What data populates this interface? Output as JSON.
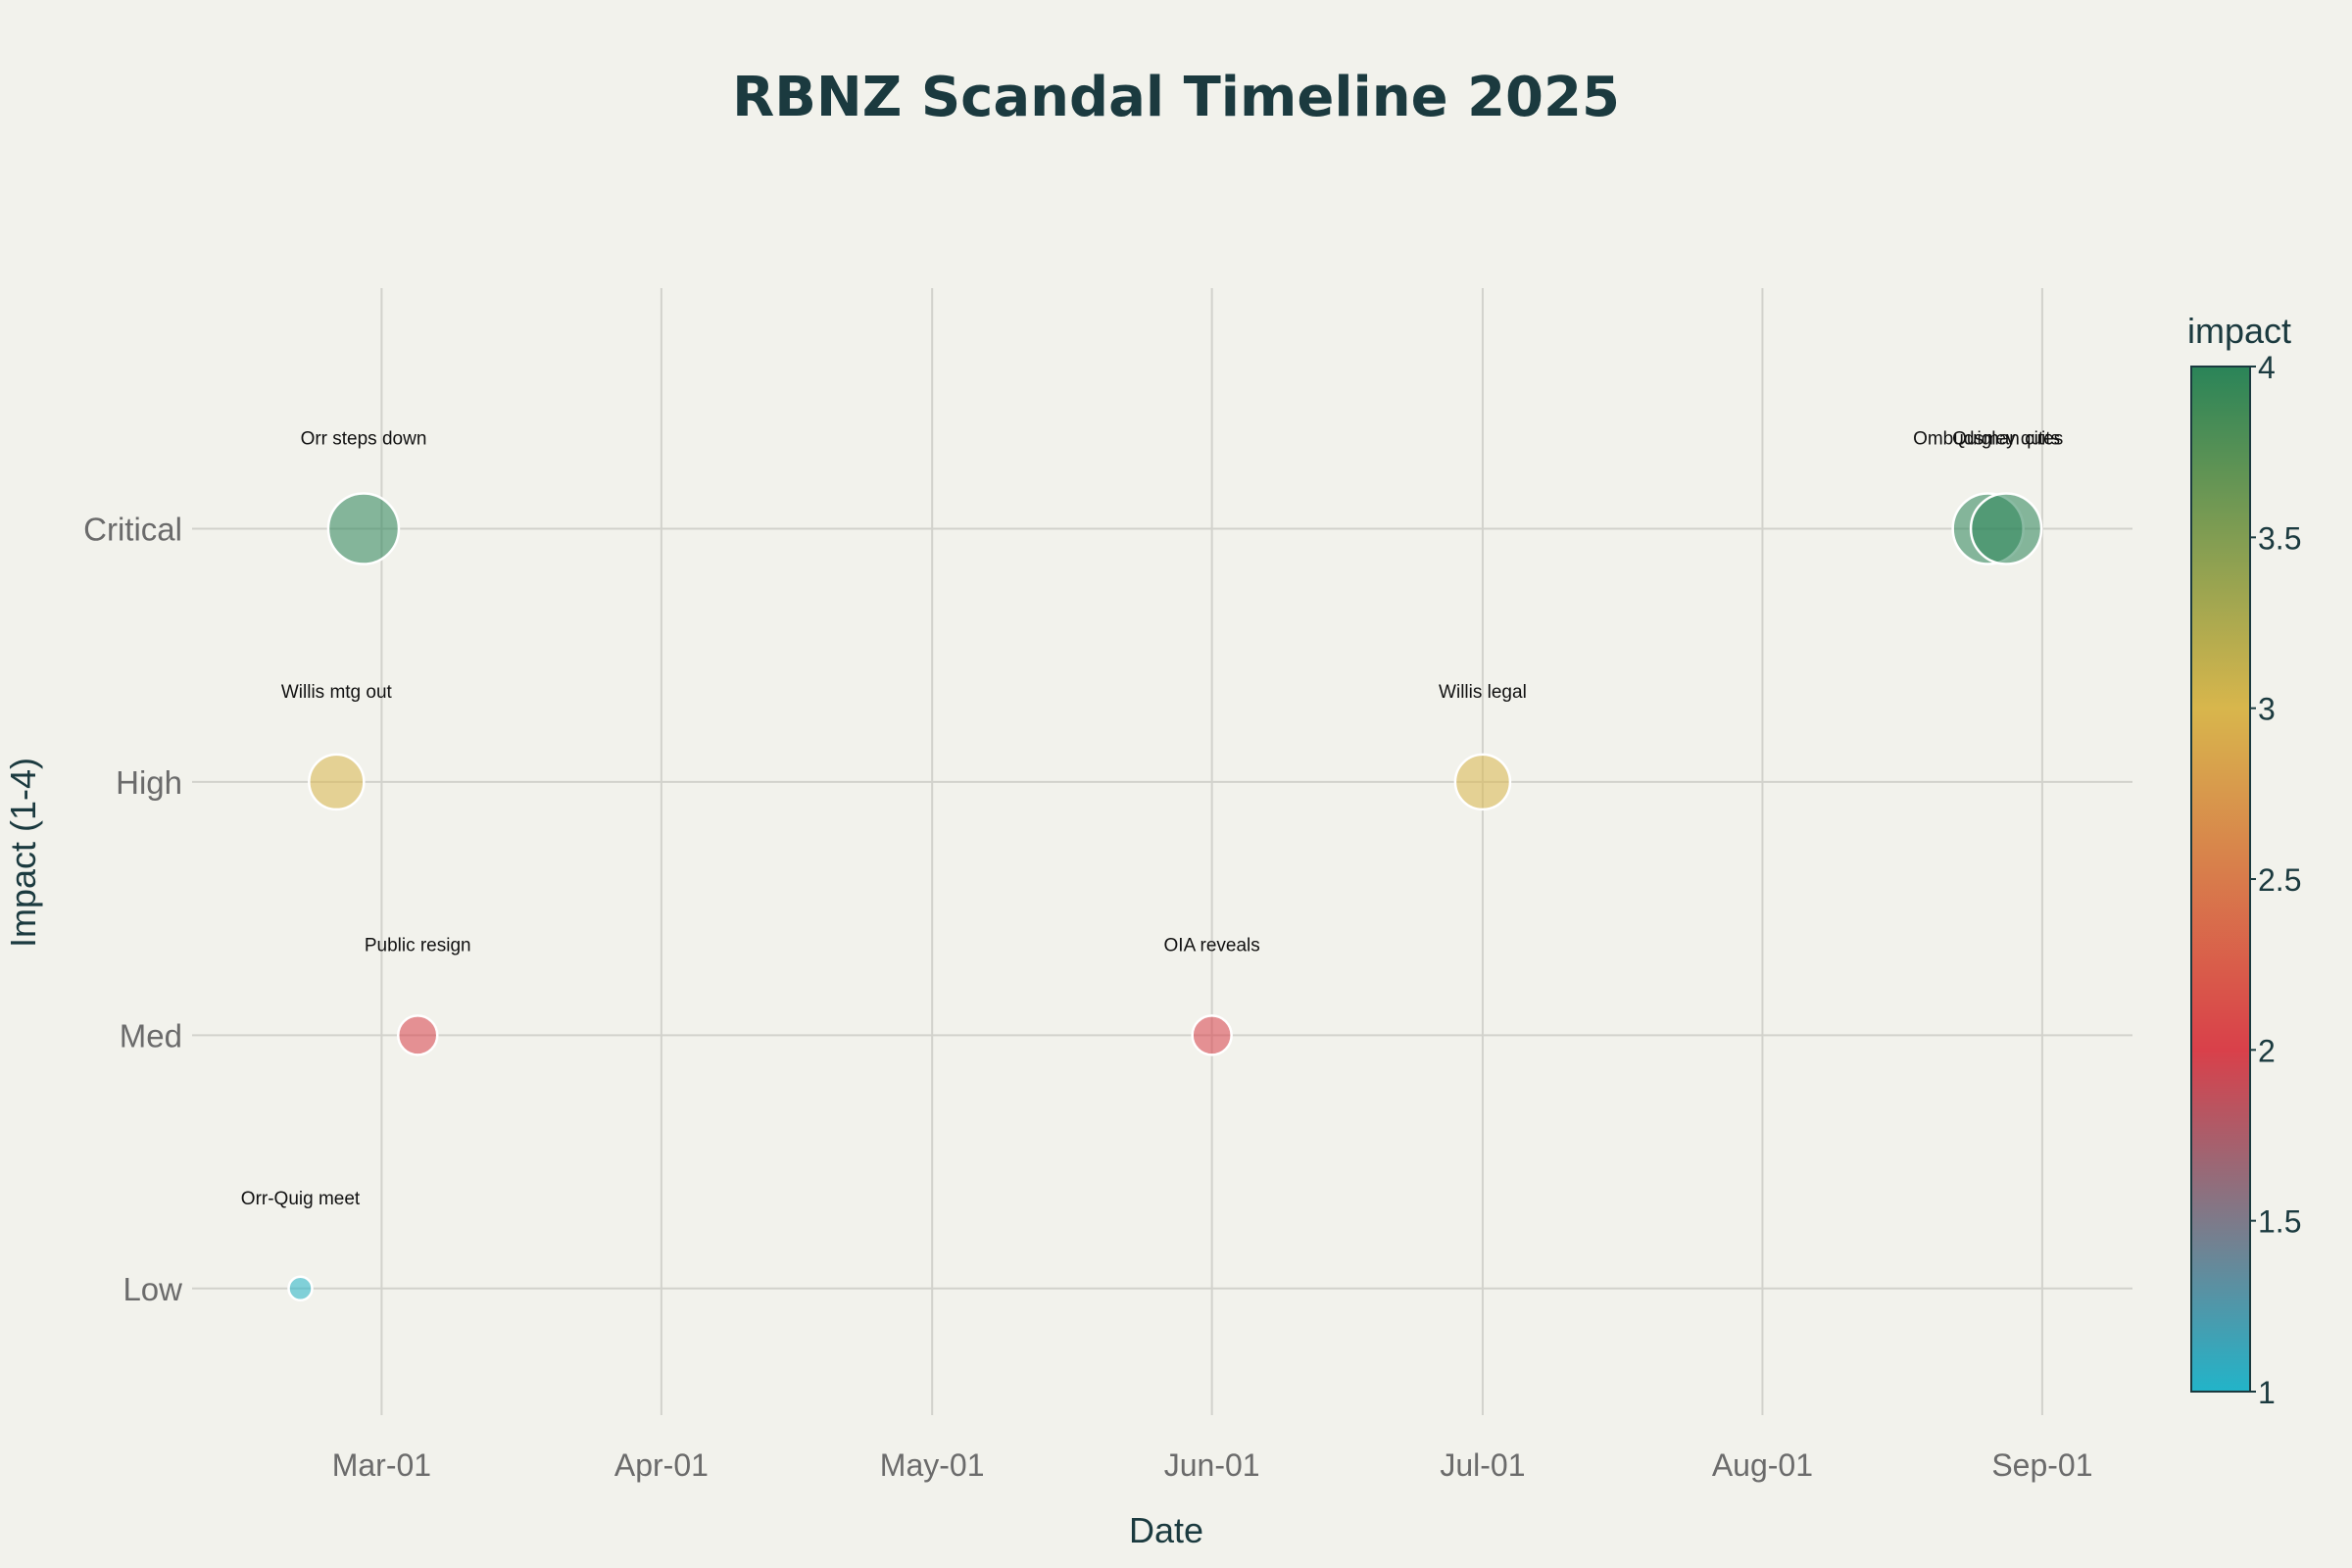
{
  "chart_data": {
    "type": "scatter",
    "title": "RBNZ Scandal Timeline 2025",
    "xlabel": "Date",
    "ylabel": "Impact (1-4)",
    "x_ticks": [
      "Mar-01",
      "Apr-01",
      "May-01",
      "Jun-01",
      "Jul-01",
      "Aug-01",
      "Sep-01"
    ],
    "x_range": [
      "2025-02-08",
      "2025-09-11"
    ],
    "y_ticks": [
      {
        "value": 1,
        "label": "Low"
      },
      {
        "value": 2,
        "label": "Med"
      },
      {
        "value": 3,
        "label": "High"
      },
      {
        "value": 4,
        "label": "Critical"
      }
    ],
    "y_range": [
      0.5,
      4.95
    ],
    "grid": true,
    "colorbar": {
      "title": "impact",
      "ticks": [
        "1",
        "1.5",
        "2",
        "2.5",
        "3",
        "3.5",
        "4"
      ],
      "range": [
        1,
        4
      ],
      "placement": "right"
    },
    "colorscale": [
      "#22b4c9",
      "#d9404a",
      "#d8b64c",
      "#2a8458"
    ],
    "points": [
      {
        "date": "2025-02-20",
        "impact": 1,
        "label": "Orr-Quig meet"
      },
      {
        "date": "2025-02-24",
        "impact": 3,
        "label": "Willis mtg out"
      },
      {
        "date": "2025-02-27",
        "impact": 4,
        "label": "Orr steps down"
      },
      {
        "date": "2025-03-05",
        "impact": 2,
        "label": "Public resign"
      },
      {
        "date": "2025-06-01",
        "impact": 2,
        "label": "OIA reveals"
      },
      {
        "date": "2025-07-01",
        "impact": 3,
        "label": "Willis legal"
      },
      {
        "date": "2025-08-26",
        "impact": 4,
        "label": "Ombudsman cites"
      },
      {
        "date": "2025-08-28",
        "impact": 4,
        "label": "Quigley quits"
      }
    ]
  }
}
